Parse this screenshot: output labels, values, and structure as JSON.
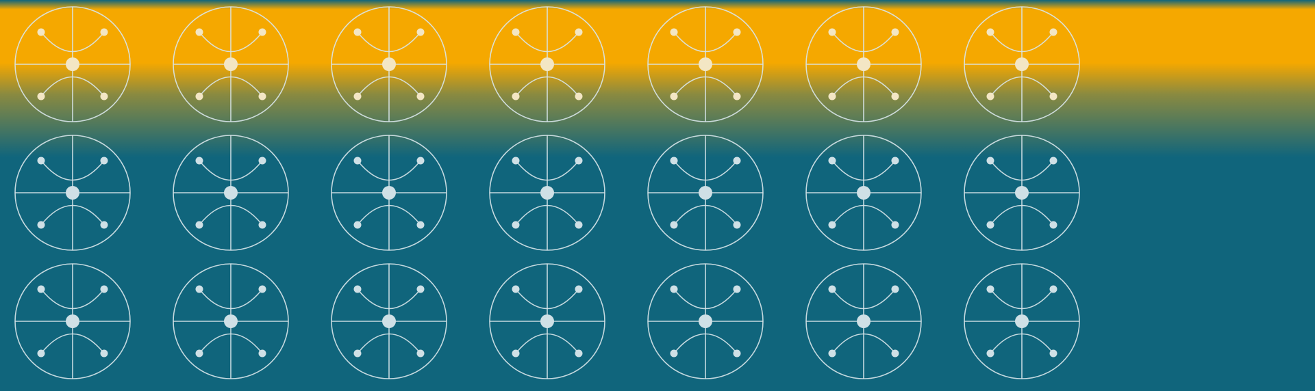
{
  "background": {
    "base_color": "#10657c",
    "band_color": "#f5a800",
    "band_edge_color": "#10657c"
  },
  "pattern": {
    "motif": "circle-with-crosshair-and-arcs",
    "rows": 3,
    "columns": 7,
    "stroke_color": "#d8e6ea",
    "dot_color_on_band": "#f3e6c4",
    "dot_color_on_base": "#cfe0e6"
  }
}
